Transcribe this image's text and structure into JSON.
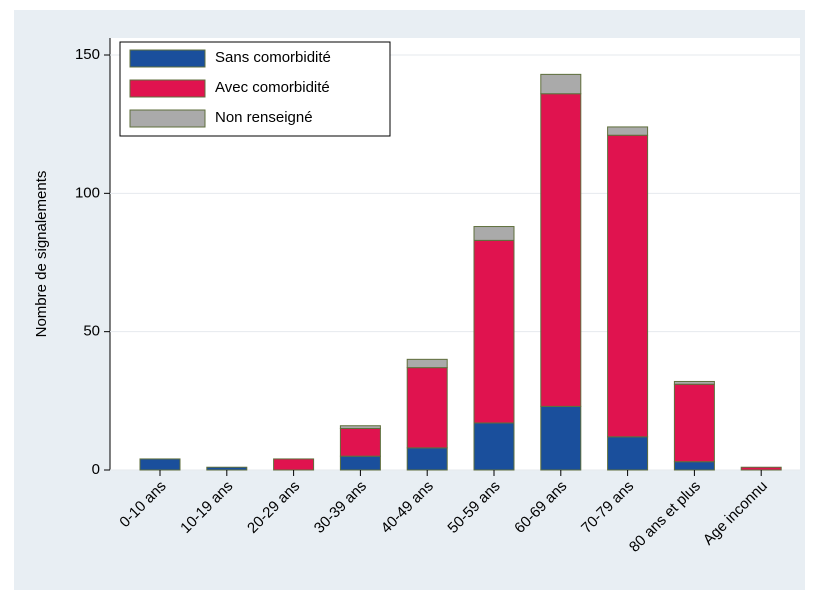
{
  "chart_data": {
    "type": "bar",
    "stacked": true,
    "ylabel": "Nombre de signalements",
    "categories": [
      "0-10 ans",
      "10-19 ans",
      "20-29 ans",
      "30-39 ans",
      "40-49 ans",
      "50-59 ans",
      "60-69 ans",
      "70-79 ans",
      "80 ans et plus",
      "Age inconnu"
    ],
    "series": [
      {
        "name": "Sans comorbidité",
        "color": "#1a4f9c",
        "values": [
          4,
          1,
          0,
          5,
          8,
          17,
          23,
          12,
          3,
          0
        ]
      },
      {
        "name": "Avec comorbidité",
        "color": "#e0134f",
        "values": [
          0,
          0,
          4,
          10,
          29,
          66,
          113,
          109,
          28,
          1
        ]
      },
      {
        "name": "Non renseigné",
        "color": "#aaaaaa",
        "values": [
          0,
          0,
          0,
          1,
          3,
          5,
          7,
          3,
          1,
          0
        ]
      }
    ],
    "ylim": [
      0,
      155
    ],
    "yticks": [
      0,
      50,
      100,
      150
    ],
    "grid": true,
    "legend": "upper left"
  }
}
